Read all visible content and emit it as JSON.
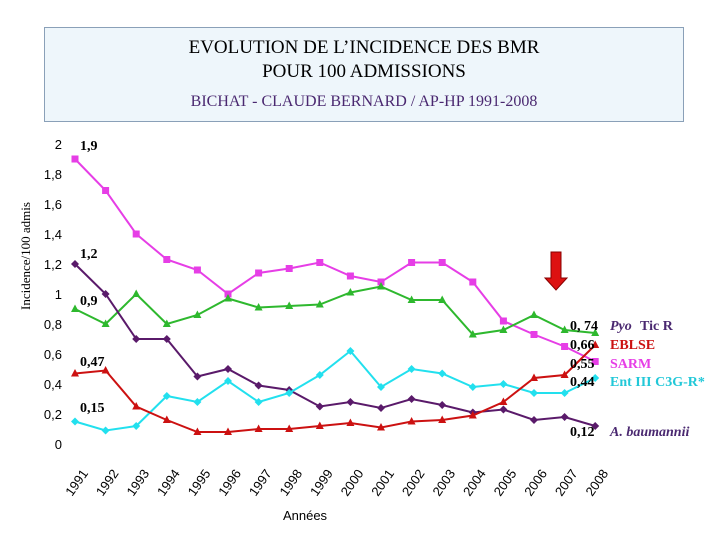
{
  "header": {
    "title_line1": "EVOLUTION DE L’INCIDENCE DES BMR",
    "title_line2": "POUR 100 ADMISSIONS",
    "subtitle": "BICHAT - CLAUDE BERNARD / AP-HP  1991-2008"
  },
  "chart_data": {
    "type": "line",
    "ylabel": "Incidence/100 admis",
    "xlabel": "Années",
    "ylim": [
      0,
      2
    ],
    "yticks": [
      "0",
      "0,2",
      "0,4",
      "0,6",
      "0,8",
      "1",
      "1,2",
      "1,4",
      "1,6",
      "1,8",
      "2"
    ],
    "x": [
      "1991",
      "1992",
      "1993",
      "1994",
      "1995",
      "1996",
      "1997",
      "1998",
      "1999",
      "2000",
      "2001",
      "2002",
      "2003",
      "2004",
      "2005",
      "2006",
      "2007",
      "2008"
    ],
    "series": [
      {
        "name": "SARM",
        "color": "#e63ee6",
        "values": [
          1.9,
          1.69,
          1.4,
          1.23,
          1.16,
          1.0,
          1.14,
          1.17,
          1.21,
          1.12,
          1.08,
          1.21,
          1.21,
          1.08,
          0.82,
          0.73,
          0.65,
          0.55
        ]
      },
      {
        "name": "Pyo Tic R",
        "color": "#2eb82e",
        "values": [
          0.9,
          0.8,
          1.0,
          0.8,
          0.86,
          0.97,
          0.91,
          0.92,
          0.93,
          1.01,
          1.05,
          0.96,
          0.96,
          0.73,
          0.76,
          0.86,
          0.76,
          0.74
        ]
      },
      {
        "name": "A. baumannii",
        "color": "#5a1a6a",
        "values": [
          1.2,
          1.0,
          0.7,
          0.7,
          0.45,
          0.5,
          0.39,
          0.36,
          0.25,
          0.28,
          0.24,
          0.3,
          0.26,
          0.21,
          0.23,
          0.16,
          0.18,
          0.12
        ]
      },
      {
        "name": "Ent III C3G-R*",
        "color": "#22e0ee",
        "values": [
          0.15,
          0.09,
          0.12,
          0.32,
          0.28,
          0.42,
          0.28,
          0.34,
          0.46,
          0.62,
          0.38,
          0.5,
          0.47,
          0.38,
          0.4,
          0.34,
          0.34,
          0.44
        ]
      },
      {
        "name": "EBLSE",
        "color": "#cc1111",
        "values": [
          0.47,
          0.49,
          0.25,
          0.16,
          0.08,
          0.08,
          0.1,
          0.1,
          0.12,
          0.14,
          0.11,
          0.15,
          0.16,
          0.19,
          0.28,
          0.44,
          0.46,
          0.66
        ]
      }
    ],
    "start_labels": [
      "1,9",
      "1,2",
      "0,9",
      "0,47",
      "0,15"
    ],
    "end_labels": [
      {
        "value": "0, 74",
        "name_a": "Pyo",
        "name_b": "Tic R",
        "color_a": "#4a2870",
        "color_b": "#4a2870"
      },
      {
        "value": "0,66",
        "name_a": "EBLSE",
        "name_b": "",
        "color_a": "#cc1111",
        "color_b": "#cc1111"
      },
      {
        "value": "0,55",
        "name_a": "SARM",
        "name_b": "",
        "color_a": "#e63ee6",
        "color_b": "#e63ee6"
      },
      {
        "value": "0,44",
        "name_a": "Ent III C3G-R*",
        "name_b": "",
        "color_a": "#22c8d8",
        "color_b": "#22c8d8"
      },
      {
        "value": "0,12",
        "name_a": "A. baumannii",
        "name_b": "",
        "color_a": "#4a2870",
        "color_b": "#4a2870"
      }
    ],
    "grid": false,
    "arrow_color": "#dd1111"
  }
}
